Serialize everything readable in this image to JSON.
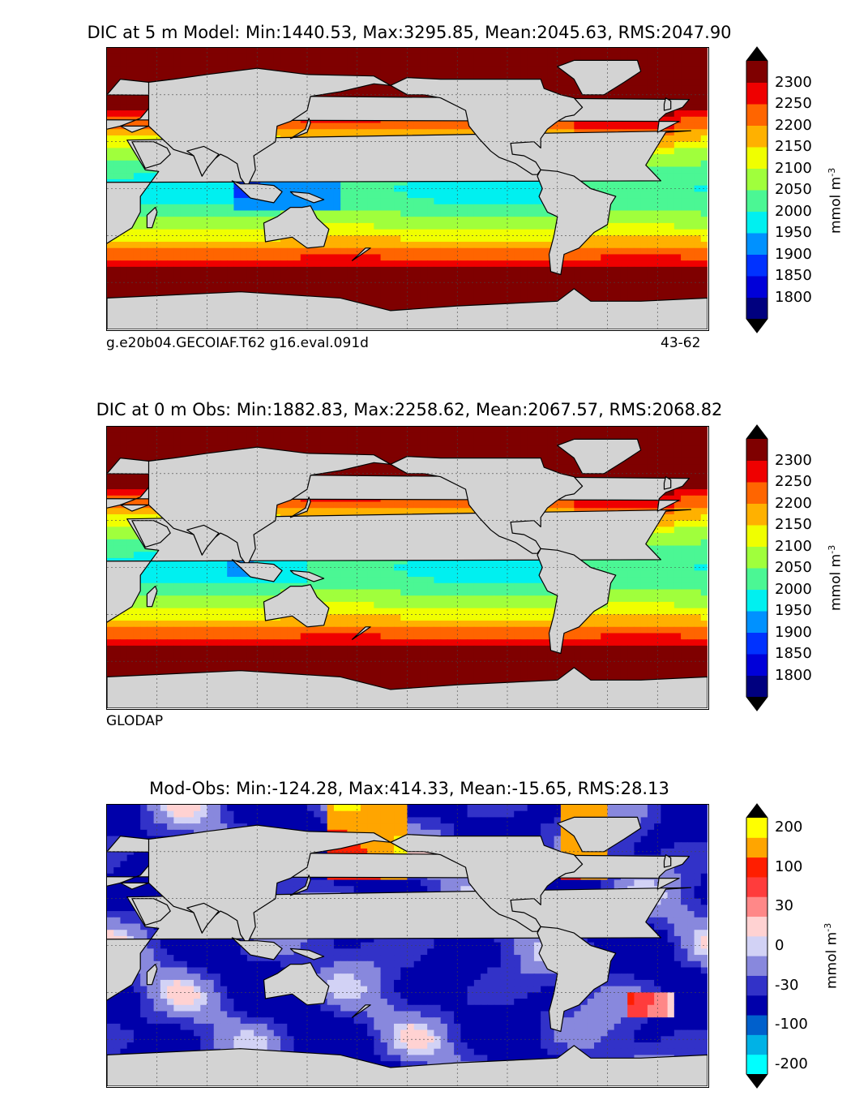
{
  "chart_data": [
    {
      "type": "heatmap",
      "title": "DIC at 5 m Model: Min:1440.53, Max:3295.85, Mean:2045.63, RMS:2047.90",
      "caption_left": "g.e20b04.GECOIAF.T62 g16.eval.091d",
      "caption_right": "43-62",
      "colorbar_label": "mmol m",
      "colorbar_exponent": "-3",
      "colorbar_ticks": [
        "1800",
        "1850",
        "1900",
        "1950",
        "2000",
        "2050",
        "2100",
        "2150",
        "2200",
        "2250",
        "2300"
      ],
      "colorbar_colors": [
        "#00007f",
        "#0000d9",
        "#0032ff",
        "#0091ff",
        "#00f0f0",
        "#4bf794",
        "#a0ff3c",
        "#f0ff00",
        "#ffb100",
        "#ff6500",
        "#ef0000",
        "#7f0000"
      ],
      "grid": true
    },
    {
      "type": "heatmap",
      "title": "DIC at 0 m Obs: Min:1882.83, Max:2258.62, Mean:2067.57, RMS:2068.82",
      "caption_left": "GLODAP",
      "colorbar_label": "mmol m",
      "colorbar_exponent": "-3",
      "colorbar_ticks": [
        "1800",
        "1850",
        "1900",
        "1950",
        "2000",
        "2050",
        "2100",
        "2150",
        "2200",
        "2250",
        "2300"
      ],
      "colorbar_colors": [
        "#00007f",
        "#0000d9",
        "#0032ff",
        "#0091ff",
        "#00f0f0",
        "#4bf794",
        "#a0ff3c",
        "#f0ff00",
        "#ffb100",
        "#ff6500",
        "#ef0000",
        "#7f0000"
      ],
      "grid": true
    },
    {
      "type": "heatmap",
      "title": "Mod-Obs: Min:-124.28, Max:414.33, Mean:-15.65, RMS:28.13",
      "colorbar_label": "mmol m",
      "colorbar_exponent": "-3",
      "colorbar_ticks": [
        "-200",
        "-100",
        "-30",
        "0",
        "30",
        "100",
        "200"
      ],
      "colorbar_colors": [
        "#00ffff",
        "#00b2e6",
        "#0060cc",
        "#0000aa",
        "#3232c8",
        "#8888dd",
        "#d2d2f5",
        "#ffd2d2",
        "#ff8888",
        "#ff3c3c",
        "#ff1e00",
        "#ffa500",
        "#ffff00"
      ],
      "grid": true
    }
  ]
}
